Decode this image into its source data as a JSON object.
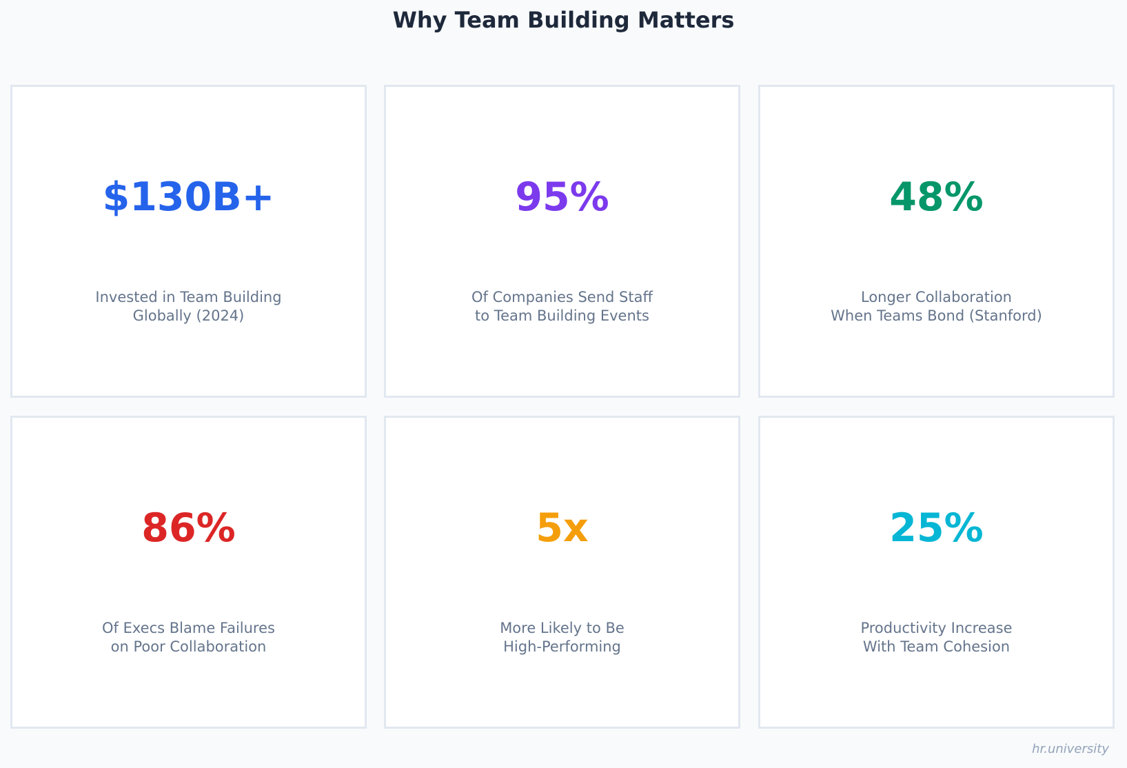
{
  "title": "Why Team Building Matters",
  "cards": [
    {
      "value": "$130B+",
      "line1": "Invested in Team Building",
      "line2": "Globally (2024)",
      "color": "#2563eb"
    },
    {
      "value": "95%",
      "line1": "Of Companies Send Staff",
      "line2": "to Team Building Events",
      "color": "#7c3aed"
    },
    {
      "value": "48%",
      "line1": "Longer Collaboration",
      "line2": "When Teams Bond (Stanford)",
      "color": "#059669"
    },
    {
      "value": "86%",
      "line1": "Of Execs Blame Failures",
      "line2": "on Poor Collaboration",
      "color": "#dc2626"
    },
    {
      "value": "5x",
      "line1": "More Likely to Be",
      "line2": "High-Performing",
      "color": "#f59e0b"
    },
    {
      "value": "25%",
      "line1": "Productivity Increase",
      "line2": "With Team Cohesion",
      "color": "#06b6d4"
    }
  ],
  "watermark": "hr.university"
}
